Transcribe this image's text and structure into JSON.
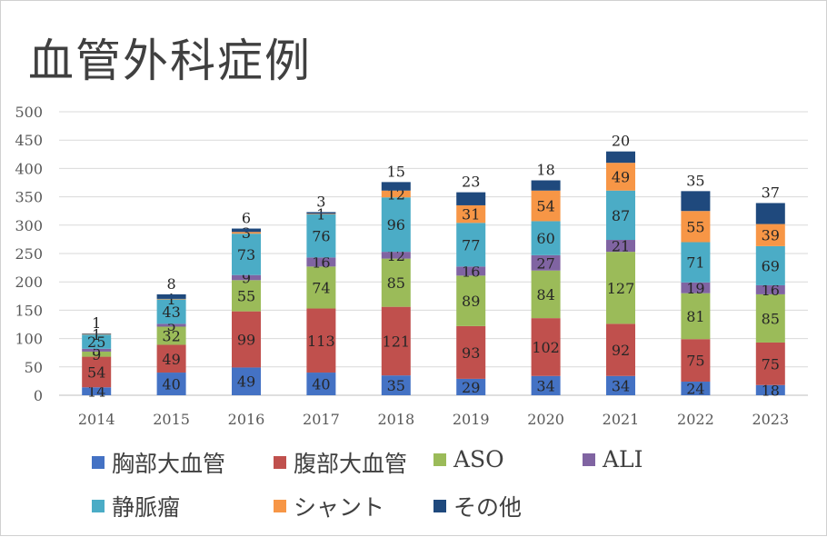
{
  "chart_data": {
    "type": "bar",
    "stacked": true,
    "title": "血管外科症例",
    "categories": [
      "2014",
      "2015",
      "2016",
      "2017",
      "2018",
      "2019",
      "2020",
      "2021",
      "2022",
      "2023"
    ],
    "ylim": [
      0,
      500
    ],
    "yticks": [
      0,
      50,
      100,
      150,
      200,
      250,
      300,
      350,
      400,
      450,
      500
    ],
    "grid": true,
    "legend_position": "bottom",
    "series": [
      {
        "name": "胸部大血管",
        "color": "#4472C4",
        "values": [
          14,
          40,
          49,
          40,
          35,
          29,
          34,
          34,
          24,
          18
        ]
      },
      {
        "name": "腹部大血管",
        "color": "#C0504D",
        "values": [
          54,
          49,
          99,
          113,
          121,
          93,
          102,
          92,
          75,
          75
        ]
      },
      {
        "name": "ASO",
        "color": "#9BBB59",
        "values": [
          9,
          32,
          55,
          74,
          85,
          89,
          84,
          127,
          81,
          85
        ]
      },
      {
        "name": "ALI",
        "color": "#8064A2",
        "values": [
          5,
          5,
          9,
          16,
          12,
          16,
          27,
          21,
          19,
          16
        ]
      },
      {
        "name": "静脈瘤",
        "color": "#4BACC6",
        "values": [
          25,
          43,
          73,
          76,
          96,
          77,
          60,
          87,
          71,
          69
        ]
      },
      {
        "name": "シャント",
        "color": "#F79646",
        "values": [
          1,
          1,
          3,
          1,
          12,
          31,
          54,
          49,
          55,
          39
        ]
      },
      {
        "name": "その他",
        "color": "#1F497D",
        "values": [
          1,
          8,
          6,
          3,
          15,
          23,
          18,
          20,
          35,
          37
        ]
      }
    ]
  }
}
